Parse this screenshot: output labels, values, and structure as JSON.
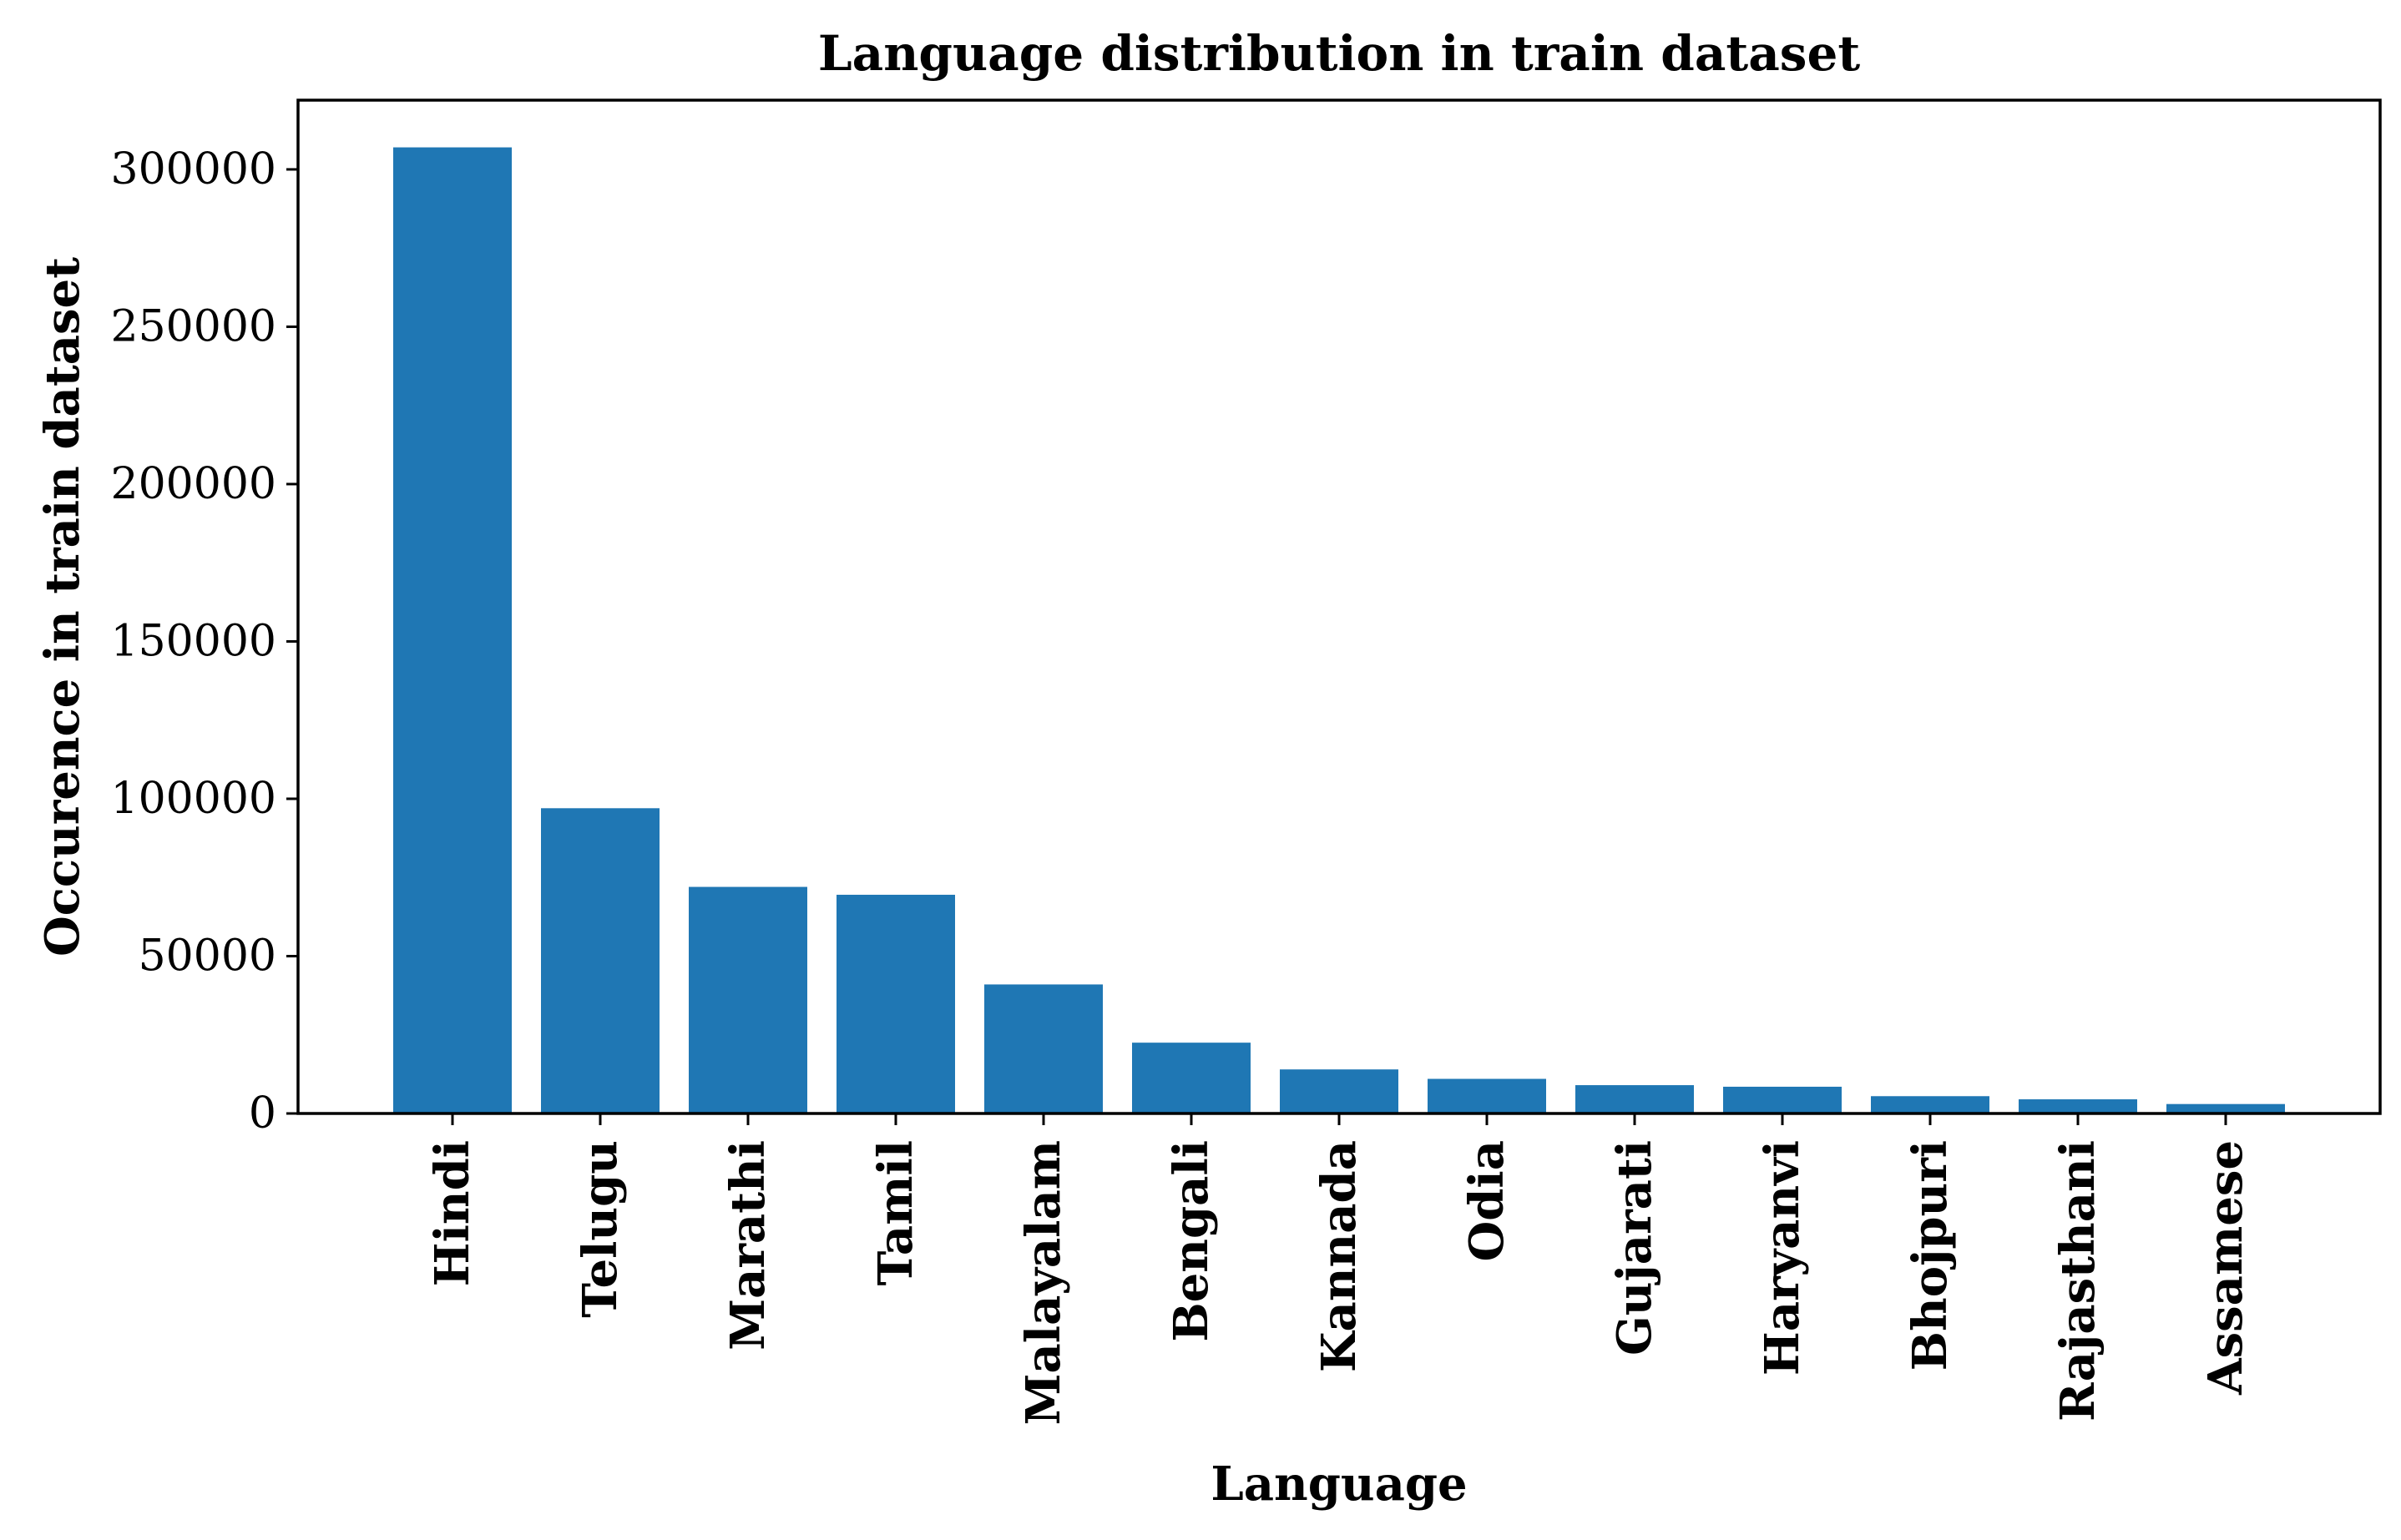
{
  "chart_data": {
    "type": "bar",
    "title": "Language distribution in train dataset",
    "xlabel": "Language",
    "ylabel": "Occurence in train dataset",
    "categories": [
      "Hindi",
      "Telugu",
      "Marathi",
      "Tamil",
      "Malayalam",
      "Bengali",
      "Kannada",
      "Odia",
      "Gujarati",
      "Haryanvi",
      "Bhojpuri",
      "Rajasthani",
      "Assamese"
    ],
    "values": [
      307000,
      97000,
      72000,
      69500,
      41000,
      22500,
      14000,
      11000,
      9000,
      8500,
      5500,
      4500,
      3000
    ],
    "yticks": [
      0,
      50000,
      100000,
      150000,
      200000,
      250000,
      300000
    ],
    "ylim": [
      0,
      322000
    ],
    "bar_color": "#1f77b4",
    "grid": false,
    "legend": "none"
  }
}
